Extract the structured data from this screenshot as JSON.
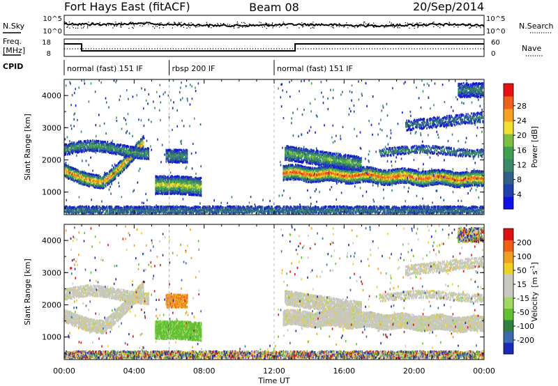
{
  "header": {
    "title": "Fort Hays East (fitACF)",
    "beam": "Beam 08",
    "date": "20/Sep/2014"
  },
  "noise_panel": {
    "left_label": "N.Sky",
    "right_label": "N.Search",
    "left_ticks": [
      "10^5",
      "10^0"
    ],
    "right_ticks": [
      "10^5",
      "10^0"
    ]
  },
  "freq_panel": {
    "left_label_1": "Freq.",
    "left_label_2": "[MHz]",
    "left_ticks": [
      "18",
      "8"
    ],
    "right_label": "Nave",
    "right_ticks": [
      "60",
      "0"
    ]
  },
  "cpid_panel": {
    "label": "CPID",
    "segments": [
      {
        "name": "normal (fast) 151 IF",
        "start_hour": 0,
        "end_hour": 6
      },
      {
        "name": "rbsp 200 IF",
        "start_hour": 6,
        "end_hour": 12
      },
      {
        "name": "normal (fast) 151 IF",
        "start_hour": 12,
        "end_hour": 24
      }
    ]
  },
  "chart_data": [
    {
      "type": "heatmap",
      "ylabel": "Slant Range [km]",
      "yticks": [
        "1000",
        "2000",
        "3000",
        "4000"
      ],
      "ylim": [
        300,
        4500
      ],
      "xlim": [
        0,
        24
      ],
      "colorbar": {
        "label": "Power [dB]",
        "ticks": [
          "4",
          "8",
          "12",
          "16",
          "20",
          "24",
          "28"
        ],
        "colors": [
          "#1010e8",
          "#2040b0",
          "#30608a",
          "#3a8a6a",
          "#40a050",
          "#7cc040",
          "#f0e030",
          "#f8a020",
          "#f06018",
          "#e81010"
        ]
      }
    },
    {
      "type": "heatmap",
      "ylabel": "Velocity [m s-1]",
      "ylabel_axis": "Slant Range [km]",
      "yticks": [
        "1000",
        "2000",
        "3000",
        "4000"
      ],
      "ylim": [
        300,
        4500
      ],
      "xlim": [
        0,
        24
      ],
      "xlabel": "Time UT",
      "xticks": [
        "00:00",
        "04:00",
        "08:00",
        "12:00",
        "16:00",
        "20:00",
        "00:00"
      ],
      "colorbar": {
        "label": "Velocity",
        "unit_prefix": "[m s",
        "unit_exp": "-1",
        "unit_suffix": "]",
        "ticks": [
          "200",
          "100",
          "50",
          "15",
          "-15",
          "-50",
          "-100",
          "-200"
        ],
        "colors": [
          "#1a2ab8",
          "#3c6ab0",
          "#308040",
          "#60c030",
          "#a0d860",
          "#c8c8c0",
          "#c8c8c0",
          "#f0d020",
          "#f0a020",
          "#f06010",
          "#e01010"
        ]
      }
    }
  ]
}
